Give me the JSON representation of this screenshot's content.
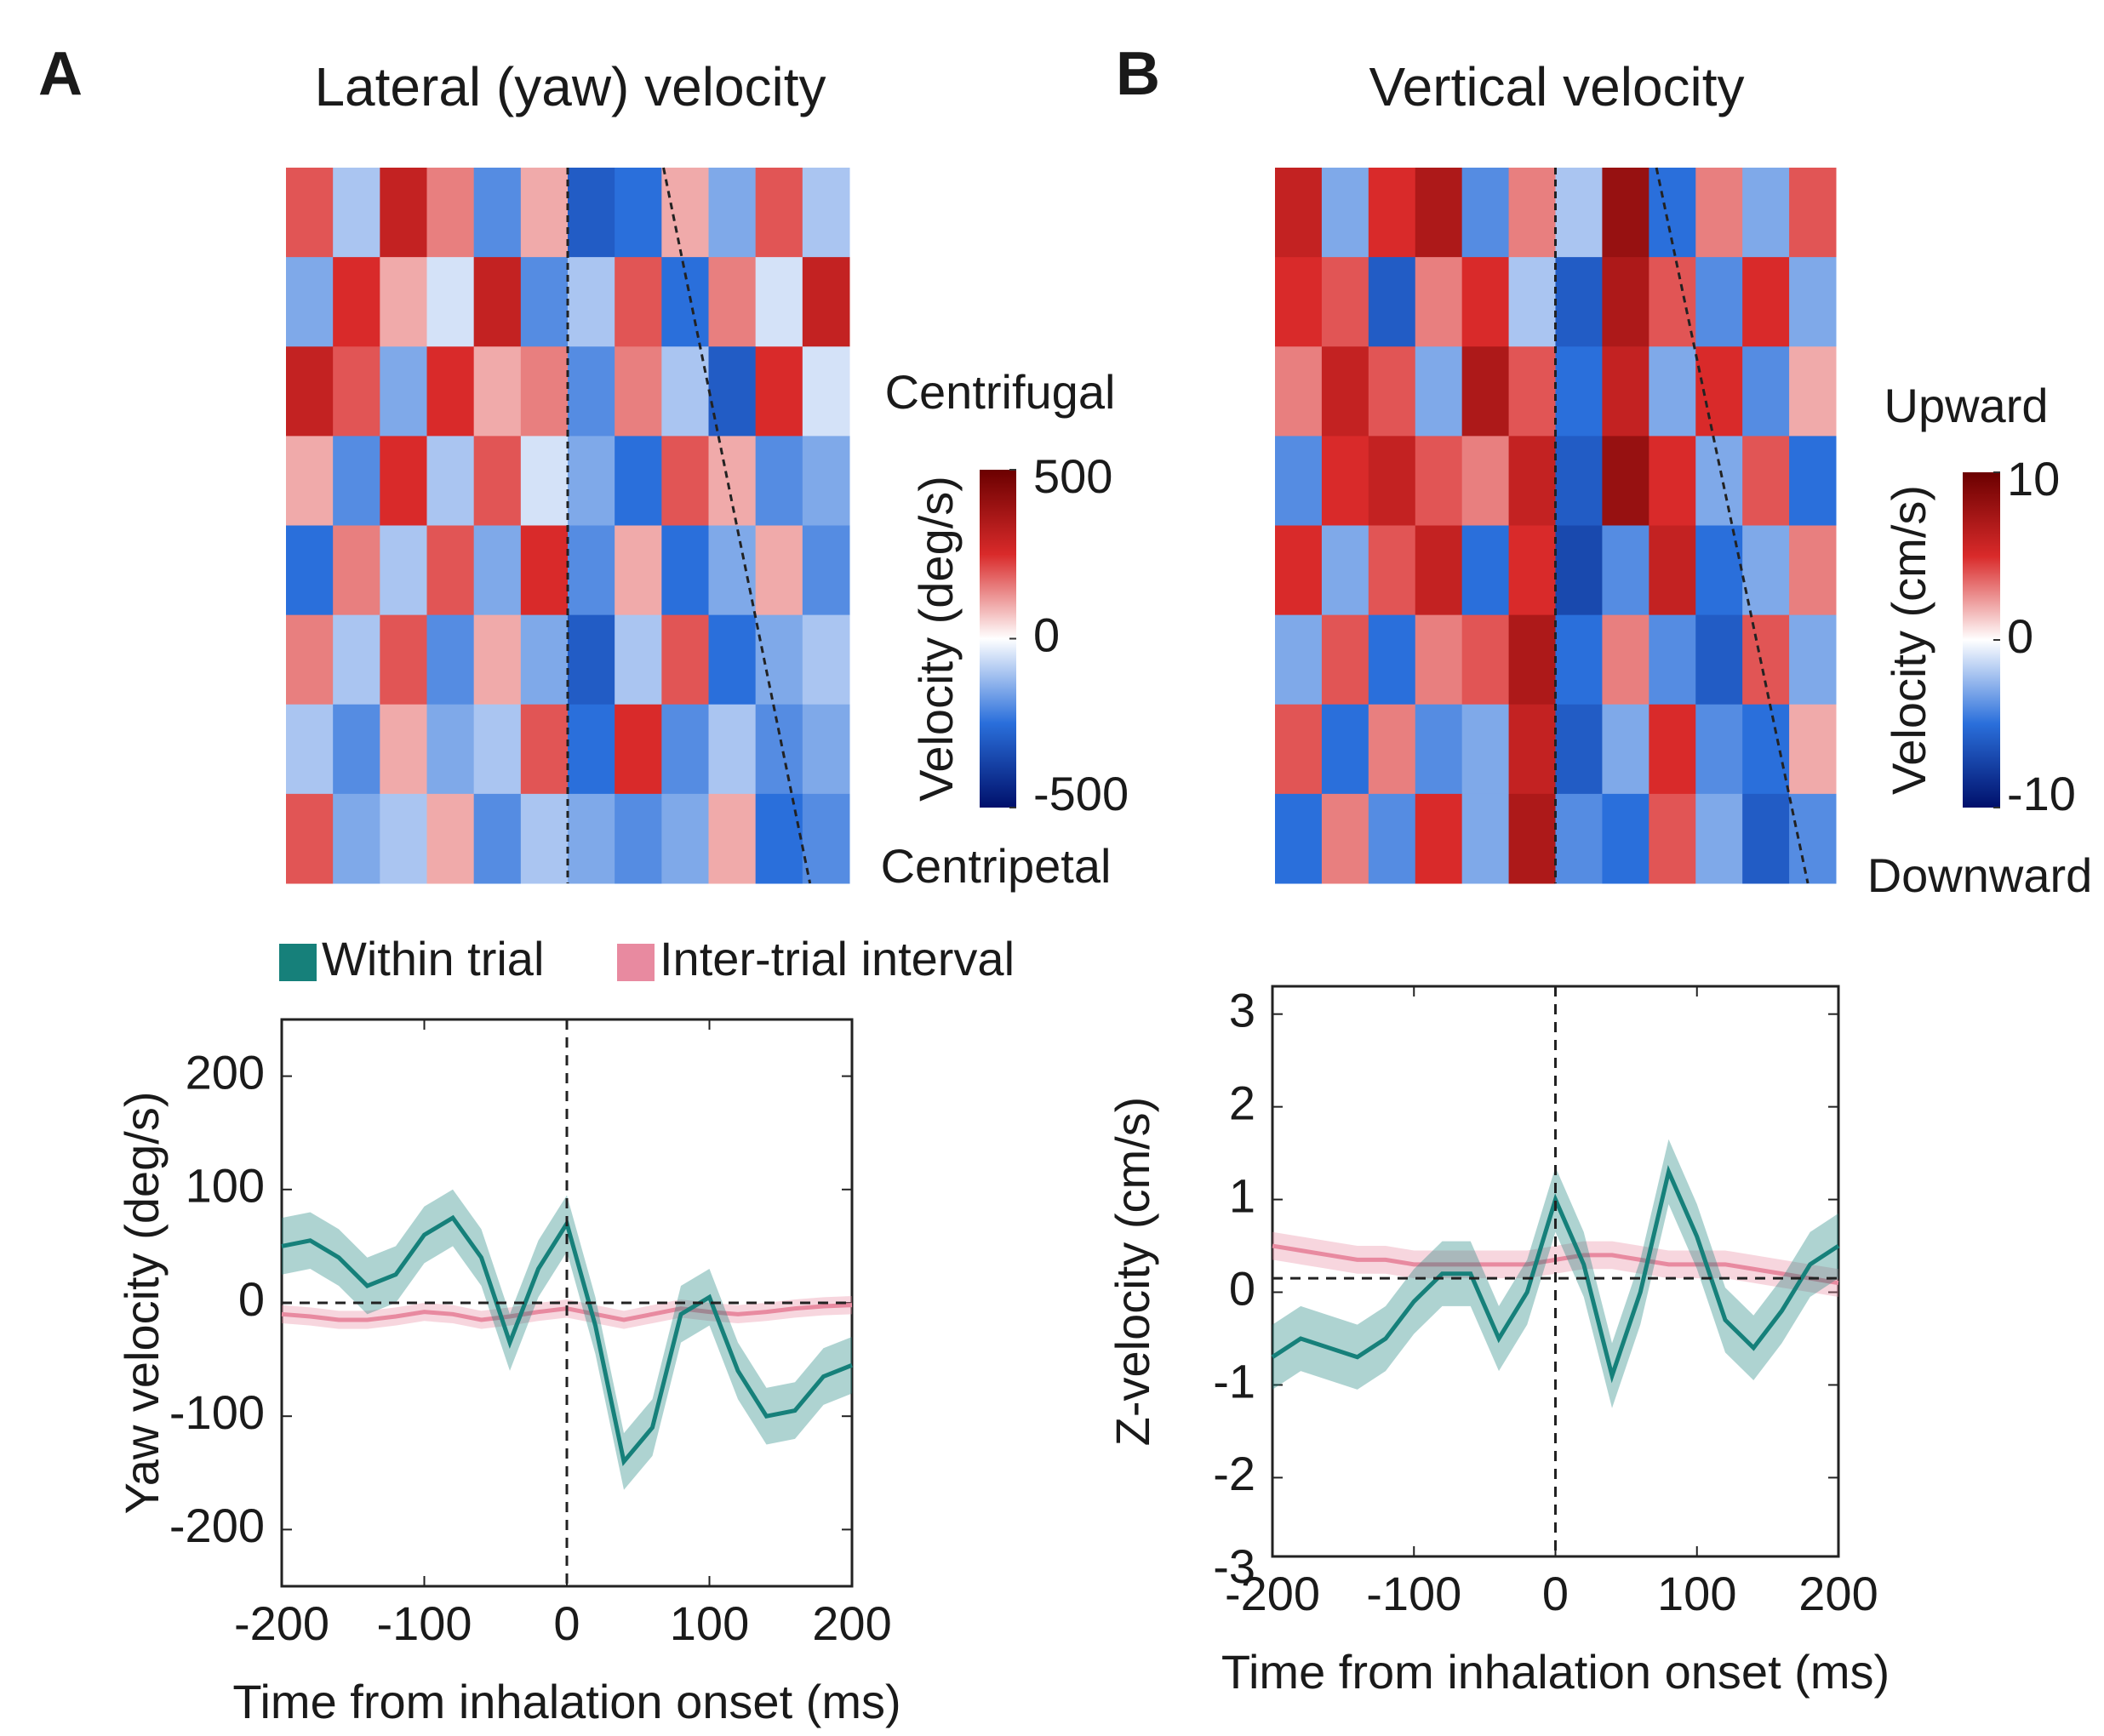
{
  "chart_data": [
    {
      "type": "heatmap",
      "panel": "A",
      "title": "Lateral (yaw) velocity",
      "values": [
        [
          200,
          -100,
          300,
          150,
          -200,
          100,
          -300,
          -250,
          100,
          -150,
          200,
          -100
        ],
        [
          -150,
          250,
          100,
          -50,
          300,
          -200,
          -100,
          200,
          -250,
          150,
          -50,
          300
        ],
        [
          300,
          200,
          -150,
          250,
          100,
          150,
          -200,
          150,
          -100,
          -300,
          250,
          -50
        ],
        [
          100,
          -200,
          250,
          -100,
          200,
          -50,
          -150,
          -250,
          200,
          100,
          -200,
          -150
        ],
        [
          -250,
          150,
          -100,
          200,
          -150,
          250,
          -200,
          100,
          -250,
          -150,
          100,
          -200
        ],
        [
          150,
          -100,
          200,
          -200,
          100,
          -150,
          -300,
          -100,
          200,
          -250,
          -150,
          -100
        ],
        [
          -100,
          -200,
          100,
          -150,
          -100,
          200,
          -250,
          250,
          -200,
          -100,
          -200,
          -150
        ],
        [
          200,
          -150,
          -100,
          100,
          -200,
          -100,
          -150,
          -200,
          -150,
          100,
          -250,
          -200
        ]
      ],
      "clim": [
        -500,
        500
      ],
      "cticks": [
        500,
        0,
        -500
      ],
      "colorbar_label": "Velocity (deg/s)",
      "top_label": "Centrifugal",
      "bottom_label": "Centripetal"
    },
    {
      "type": "heatmap",
      "panel": "B",
      "title": "Vertical velocity",
      "values": [
        [
          6,
          -3,
          5,
          7,
          -4,
          3,
          -2,
          8,
          -5,
          3,
          -3,
          4
        ],
        [
          5,
          4,
          -6,
          3,
          5,
          -2,
          -6,
          7,
          4,
          -4,
          5,
          -3
        ],
        [
          3,
          6,
          4,
          -3,
          7,
          4,
          -5,
          6,
          -3,
          5,
          -4,
          2
        ],
        [
          -4,
          5,
          6,
          4,
          3,
          6,
          -6,
          8,
          5,
          -3,
          4,
          -5
        ],
        [
          5,
          -3,
          4,
          6,
          -5,
          5,
          -7,
          -4,
          6,
          -5,
          -3,
          3
        ],
        [
          -3,
          4,
          -5,
          3,
          4,
          7,
          -5,
          3,
          -4,
          -6,
          4,
          -3
        ],
        [
          4,
          -5,
          3,
          -4,
          -3,
          6,
          -6,
          -3,
          5,
          -4,
          -5,
          2
        ],
        [
          -5,
          3,
          -4,
          5,
          -3,
          7,
          -4,
          -5,
          4,
          -3,
          -6,
          -4
        ]
      ],
      "clim": [
        -10,
        10
      ],
      "cticks": [
        10,
        0,
        -10
      ],
      "colorbar_label": "Velocity (cm/s)",
      "top_label": "Upward",
      "bottom_label": "Downward"
    },
    {
      "type": "line",
      "xlabel": "Time from inhalation onset (ms)",
      "ylabel": "Yaw velocity (deg/s)",
      "x": [
        -200,
        -180,
        -160,
        -140,
        -120,
        -100,
        -80,
        -60,
        -40,
        -20,
        0,
        20,
        40,
        60,
        80,
        100,
        120,
        140,
        160,
        180,
        200
      ],
      "series": [
        {
          "name": "Within trial",
          "color": "#16807a",
          "values": [
            50,
            55,
            40,
            15,
            25,
            60,
            75,
            40,
            -35,
            30,
            70,
            -20,
            -140,
            -110,
            -10,
            5,
            -60,
            -100,
            -95,
            -65,
            -55
          ],
          "error": [
            25,
            25,
            25,
            25,
            25,
            25,
            25,
            25,
            25,
            25,
            25,
            25,
            25,
            25,
            25,
            25,
            25,
            25,
            25,
            25,
            25
          ]
        },
        {
          "name": "Inter-trial interval",
          "color": "#e88aa0",
          "values": [
            -10,
            -12,
            -15,
            -15,
            -12,
            -8,
            -10,
            -15,
            -12,
            -8,
            -5,
            -10,
            -15,
            -10,
            -5,
            -8,
            -10,
            -8,
            -5,
            -3,
            -2
          ],
          "error": [
            8,
            8,
            8,
            8,
            8,
            8,
            8,
            8,
            8,
            8,
            8,
            8,
            8,
            8,
            8,
            8,
            8,
            8,
            8,
            8,
            8
          ]
        }
      ],
      "xlim": [
        -200,
        200
      ],
      "xticks": [
        -200,
        -100,
        0,
        100,
        200
      ],
      "ylim": [
        -250,
        250
      ],
      "yticks": [
        -200,
        -100,
        0,
        100,
        200
      ],
      "hline": 0,
      "vline": 0,
      "legend": "top"
    },
    {
      "type": "line",
      "xlabel": "Time from inhalation onset (ms)",
      "ylabel": "Z-velocity (cm/s)",
      "x": [
        -200,
        -180,
        -160,
        -140,
        -120,
        -100,
        -80,
        -60,
        -40,
        -20,
        0,
        20,
        40,
        60,
        80,
        100,
        120,
        140,
        160,
        180,
        200
      ],
      "series": [
        {
          "color": "#16807a",
          "values": [
            -0.7,
            -0.5,
            -0.6,
            -0.7,
            -0.5,
            -0.1,
            0.2,
            0.2,
            -0.5,
            0.0,
            1.0,
            0.3,
            -0.9,
            0.0,
            1.3,
            0.6,
            -0.3,
            -0.6,
            -0.2,
            0.3,
            0.5
          ],
          "error": [
            0.35,
            0.35,
            0.35,
            0.35,
            0.35,
            0.35,
            0.35,
            0.35,
            0.35,
            0.35,
            0.35,
            0.35,
            0.35,
            0.35,
            0.35,
            0.35,
            0.35,
            0.35,
            0.35,
            0.35,
            0.35
          ]
        },
        {
          "color": "#e88aa0",
          "values": [
            0.5,
            0.45,
            0.4,
            0.35,
            0.35,
            0.3,
            0.3,
            0.3,
            0.3,
            0.3,
            0.35,
            0.4,
            0.4,
            0.35,
            0.3,
            0.3,
            0.3,
            0.25,
            0.2,
            0.15,
            0.1
          ],
          "error": [
            0.15,
            0.15,
            0.15,
            0.15,
            0.15,
            0.15,
            0.15,
            0.15,
            0.15,
            0.15,
            0.15,
            0.15,
            0.15,
            0.15,
            0.15,
            0.15,
            0.15,
            0.15,
            0.15,
            0.15,
            0.15
          ]
        }
      ],
      "xlim": [
        -200,
        200
      ],
      "xticks": [
        -200,
        -100,
        0,
        100,
        200
      ],
      "ylim": [
        -2.85,
        3.3
      ],
      "yticks": [
        -3,
        -2,
        -1,
        0,
        1,
        2,
        3
      ],
      "hline": 0.15,
      "vline": 0
    }
  ]
}
